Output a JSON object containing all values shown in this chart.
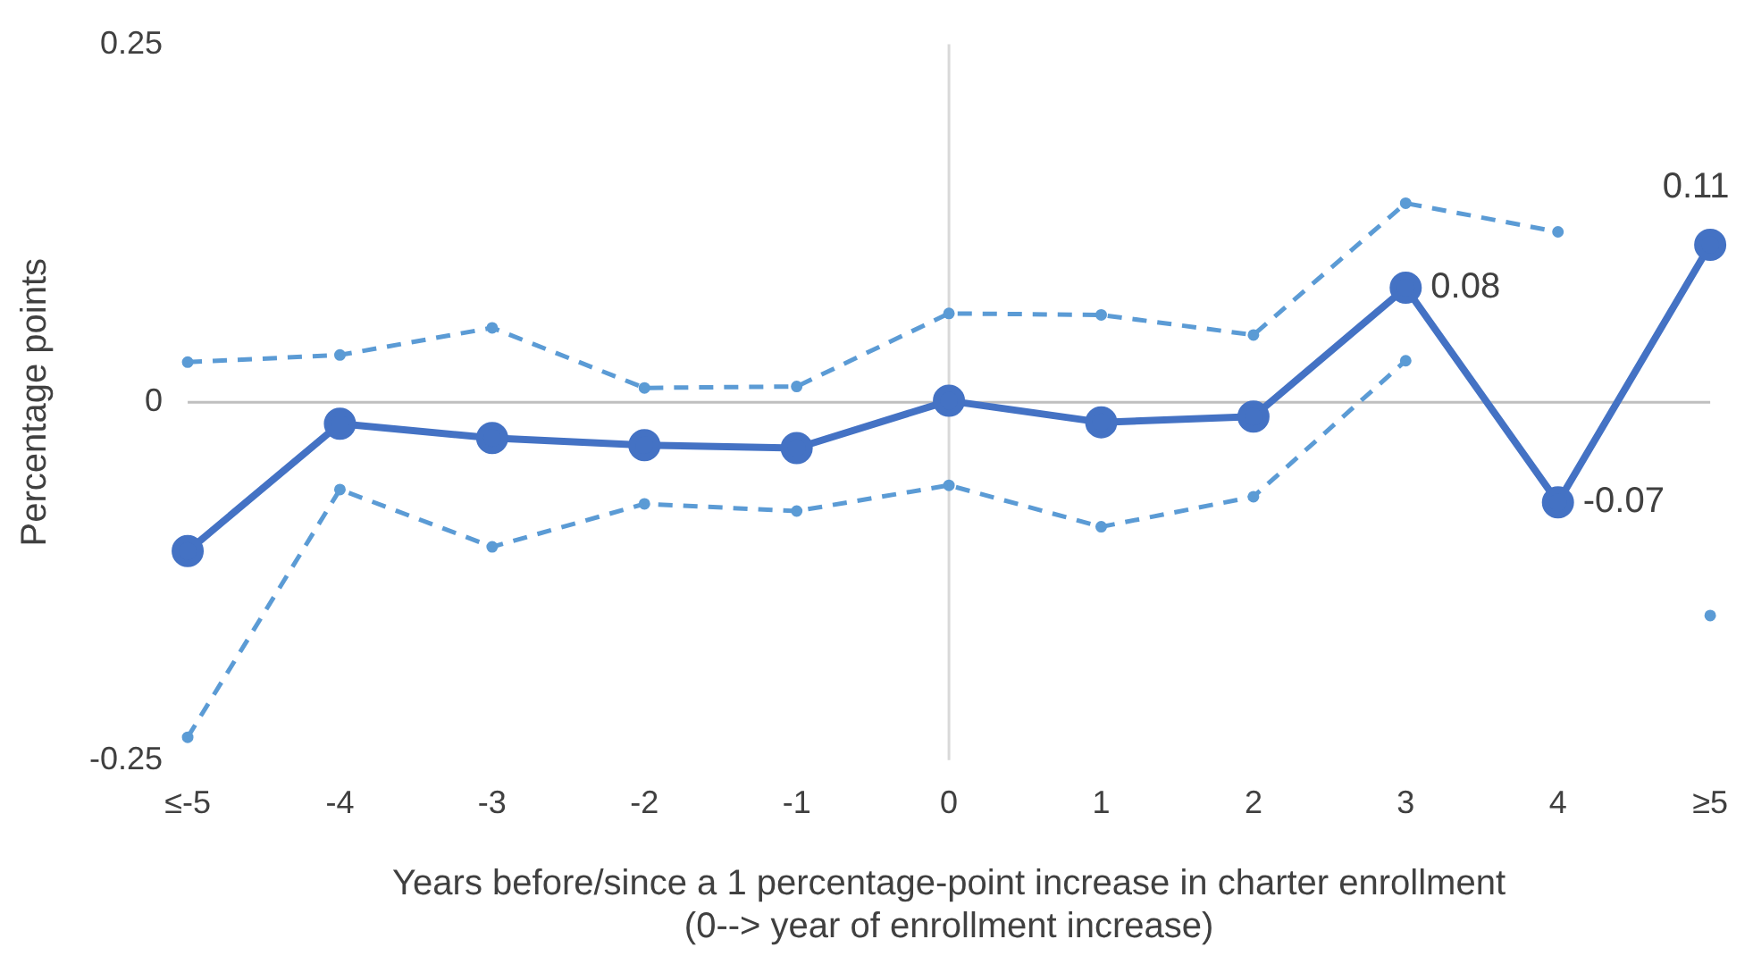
{
  "chart_data": {
    "type": "line",
    "xlabel": "Years before/since a 1 percentage-point increase in charter enrollment\n(0--> year of enrollment increase)",
    "ylabel": "Percentage points",
    "categories": [
      "≤-5",
      "-4",
      "-3",
      "-2",
      "-1",
      "0",
      "1",
      "2",
      "3",
      "4",
      "≥5"
    ],
    "ylim": [
      -0.25,
      0.25
    ],
    "yticks": [
      -0.25,
      0,
      0.25
    ],
    "grid": false,
    "legend": false,
    "ref_lines": [
      {
        "axis": "y",
        "value": 0,
        "color": "#bfbfbf"
      },
      {
        "axis": "x",
        "value": "0",
        "color": "#d9d9d9"
      }
    ],
    "series": [
      {
        "color": "#5b9bd5",
        "line_style": "dashed",
        "marker": "circle",
        "values": [
          0.028,
          0.033,
          0.052,
          0.01,
          0.011,
          0.062,
          0.061,
          0.047,
          0.139,
          0.119,
          null
        ]
      },
      {
        "color": "#5b9bd5",
        "line_style": "dashed",
        "marker": "circle",
        "values": [
          -0.234,
          -0.061,
          -0.101,
          -0.071,
          -0.076,
          -0.058,
          -0.087,
          -0.066,
          0.029,
          null,
          -0.149
        ]
      },
      {
        "color": "#4472c4",
        "line_style": "solid",
        "marker": "circle",
        "values": [
          -0.104,
          -0.015,
          -0.025,
          -0.03,
          -0.032,
          0.001,
          -0.014,
          -0.01,
          0.08,
          -0.07,
          0.11
        ],
        "value_labels": [
          null,
          null,
          null,
          null,
          null,
          null,
          null,
          null,
          "0.08",
          "-0.07",
          "0.11"
        ]
      }
    ]
  }
}
